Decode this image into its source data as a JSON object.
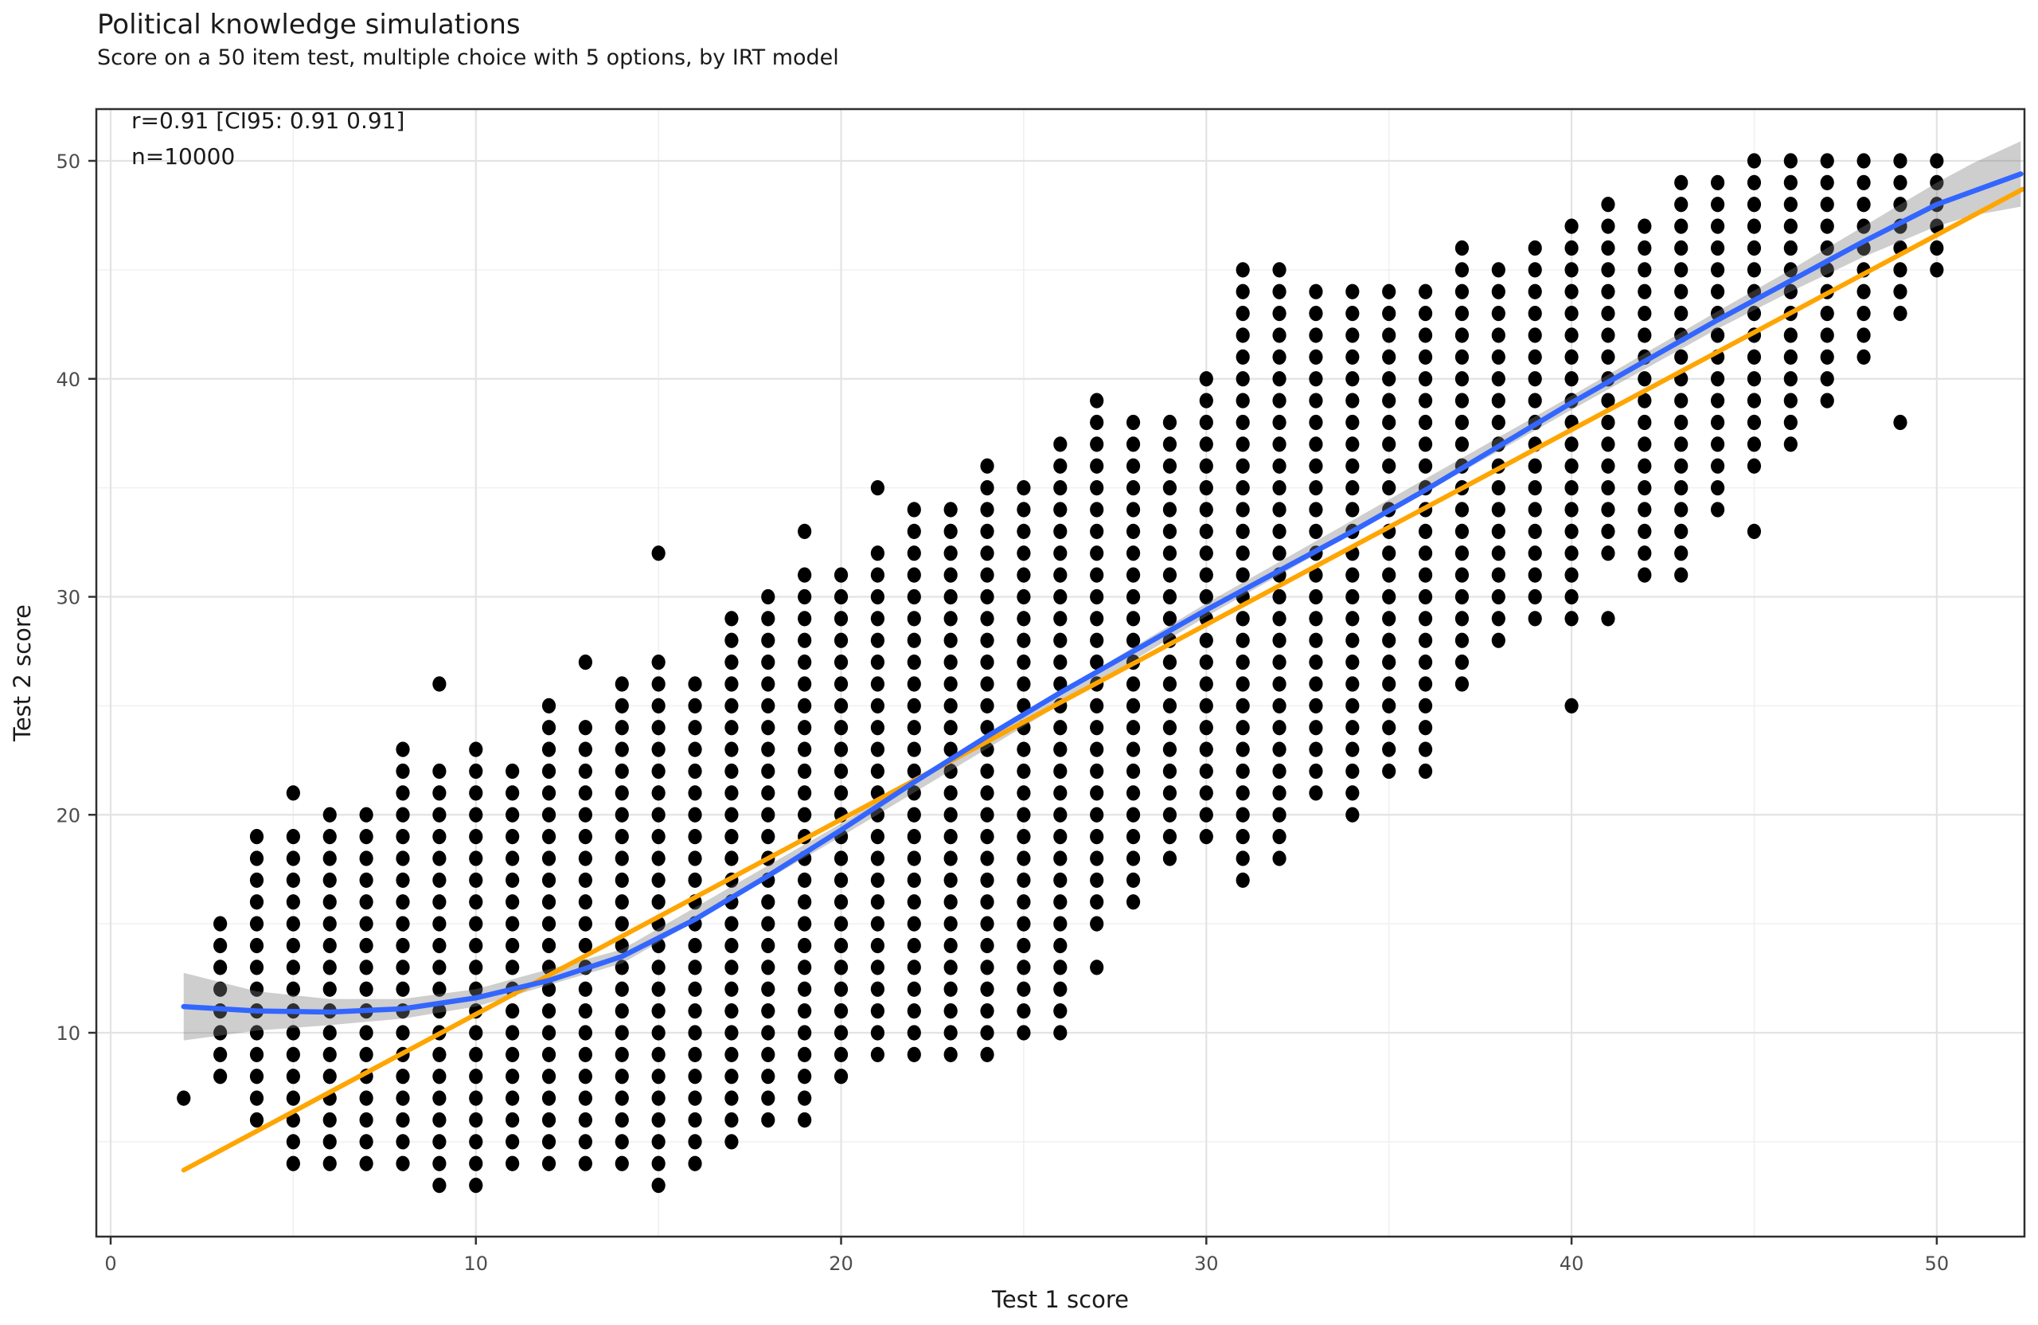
{
  "title": "Political knowledge simulations",
  "subtitle": "Score on a 50 item test, multiple choice with 5 options, by IRT model",
  "annotation": {
    "r_text": "r=0.91 [CI95: 0.91 0.91]",
    "n_text": "n=10000",
    "r": 0.91,
    "ci95": [
      0.91,
      0.91
    ],
    "n": 10000
  },
  "chart_data": {
    "type": "scatter",
    "title": "Political knowledge simulations",
    "subtitle": "Score on a 50 item test, multiple choice with 5 options, by IRT model",
    "xlabel": "Test 1 score",
    "ylabel": "Test 2 score",
    "xlim": [
      -0.4,
      52.4
    ],
    "ylim": [
      0.65,
      52.35
    ],
    "x_ticks": [
      0,
      10,
      20,
      30,
      40,
      50
    ],
    "y_ticks": [
      10,
      20,
      30,
      40,
      50
    ],
    "x_minor": [
      5,
      15,
      25,
      35,
      45
    ],
    "y_minor": [
      5,
      15,
      25,
      35,
      45
    ],
    "grid": "major+minor",
    "legend": "none",
    "points_style": {
      "color": "#000000",
      "shape": "circle"
    },
    "binned_columns": [
      {
        "x": 3,
        "y_min": 8,
        "y_max": 15
      },
      {
        "x": 4,
        "y_min": 6,
        "y_max": 19
      },
      {
        "x": 5,
        "y_min": 4,
        "y_max": 19
      },
      {
        "x": 6,
        "y_min": 4,
        "y_max": 20
      },
      {
        "x": 7,
        "y_min": 4,
        "y_max": 20
      },
      {
        "x": 8,
        "y_min": 4,
        "y_max": 23
      },
      {
        "x": 9,
        "y_min": 3,
        "y_max": 22
      },
      {
        "x": 10,
        "y_min": 3,
        "y_max": 23
      },
      {
        "x": 11,
        "y_min": 4,
        "y_max": 22
      },
      {
        "x": 12,
        "y_min": 4,
        "y_max": 25
      },
      {
        "x": 13,
        "y_min": 4,
        "y_max": 24
      },
      {
        "x": 14,
        "y_min": 4,
        "y_max": 26
      },
      {
        "x": 15,
        "y_min": 3,
        "y_max": 27
      },
      {
        "x": 16,
        "y_min": 4,
        "y_max": 26
      },
      {
        "x": 17,
        "y_min": 5,
        "y_max": 29
      },
      {
        "x": 18,
        "y_min": 6,
        "y_max": 30
      },
      {
        "x": 19,
        "y_min": 6,
        "y_max": 31
      },
      {
        "x": 20,
        "y_min": 8,
        "y_max": 31
      },
      {
        "x": 21,
        "y_min": 9,
        "y_max": 32
      },
      {
        "x": 22,
        "y_min": 9,
        "y_max": 34
      },
      {
        "x": 23,
        "y_min": 9,
        "y_max": 34
      },
      {
        "x": 24,
        "y_min": 9,
        "y_max": 36
      },
      {
        "x": 25,
        "y_min": 10,
        "y_max": 35
      },
      {
        "x": 26,
        "y_min": 10,
        "y_max": 37
      },
      {
        "x": 27,
        "y_min": 15,
        "y_max": 39
      },
      {
        "x": 28,
        "y_min": 16,
        "y_max": 38
      },
      {
        "x": 29,
        "y_min": 18,
        "y_max": 38
      },
      {
        "x": 30,
        "y_min": 19,
        "y_max": 40
      },
      {
        "x": 31,
        "y_min": 17,
        "y_max": 45
      },
      {
        "x": 32,
        "y_min": 18,
        "y_max": 45
      },
      {
        "x": 33,
        "y_min": 21,
        "y_max": 44
      },
      {
        "x": 34,
        "y_min": 20,
        "y_max": 44
      },
      {
        "x": 35,
        "y_min": 22,
        "y_max": 44
      },
      {
        "x": 36,
        "y_min": 22,
        "y_max": 44
      },
      {
        "x": 37,
        "y_min": 26,
        "y_max": 46
      },
      {
        "x": 38,
        "y_min": 28,
        "y_max": 45
      },
      {
        "x": 39,
        "y_min": 29,
        "y_max": 46
      },
      {
        "x": 40,
        "y_min": 29,
        "y_max": 47
      },
      {
        "x": 41,
        "y_min": 32,
        "y_max": 48
      },
      {
        "x": 42,
        "y_min": 31,
        "y_max": 47
      },
      {
        "x": 43,
        "y_min": 31,
        "y_max": 49
      },
      {
        "x": 44,
        "y_min": 34,
        "y_max": 49
      },
      {
        "x": 45,
        "y_min": 36,
        "y_max": 50
      },
      {
        "x": 46,
        "y_min": 37,
        "y_max": 50
      },
      {
        "x": 47,
        "y_min": 39,
        "y_max": 50
      },
      {
        "x": 48,
        "y_min": 41,
        "y_max": 50
      },
      {
        "x": 49,
        "y_min": 43,
        "y_max": 50
      },
      {
        "x": 50,
        "y_min": 45,
        "y_max": 50
      }
    ],
    "outlier_points": [
      [
        2,
        7
      ],
      [
        5,
        21
      ],
      [
        9,
        26
      ],
      [
        13,
        27
      ],
      [
        15,
        32
      ],
      [
        19,
        33
      ],
      [
        21,
        35
      ],
      [
        27,
        13
      ],
      [
        40,
        25
      ],
      [
        41,
        29
      ],
      [
        45,
        33
      ],
      [
        49,
        38
      ]
    ],
    "regression_line": {
      "name": "linear fit",
      "color": "#FFA500",
      "x1": 2,
      "y1": 3.7,
      "x2": 52.35,
      "y2": 48.7
    },
    "loess_line": {
      "name": "loess fit",
      "color": "#3366FF",
      "points": [
        [
          2,
          11.2
        ],
        [
          4,
          11.0
        ],
        [
          6,
          10.95
        ],
        [
          8,
          11.1
        ],
        [
          10,
          11.6
        ],
        [
          12,
          12.4
        ],
        [
          14,
          13.5
        ],
        [
          16,
          15.2
        ],
        [
          18,
          17.2
        ],
        [
          20,
          19.3
        ],
        [
          22,
          21.5
        ],
        [
          24,
          23.6
        ],
        [
          26,
          25.6
        ],
        [
          28,
          27.5
        ],
        [
          30,
          29.4
        ],
        [
          32,
          31.2
        ],
        [
          34,
          33.0
        ],
        [
          36,
          34.9
        ],
        [
          38,
          36.9
        ],
        [
          40,
          38.9
        ],
        [
          42,
          40.8
        ],
        [
          44,
          42.7
        ],
        [
          46,
          44.5
        ],
        [
          48,
          46.3
        ],
        [
          50,
          48.0
        ],
        [
          52.3,
          49.4
        ]
      ]
    },
    "ci_band": {
      "color": "#7f7f7f",
      "opacity": 0.38,
      "upper": [
        [
          2,
          12.75
        ],
        [
          4,
          11.9
        ],
        [
          6,
          11.55
        ],
        [
          8,
          11.55
        ],
        [
          10,
          12.0
        ],
        [
          14,
          13.82
        ],
        [
          20,
          19.6
        ],
        [
          30,
          29.7
        ],
        [
          40,
          39.22
        ],
        [
          44,
          43.1
        ],
        [
          46,
          45.0
        ],
        [
          48,
          47.0
        ],
        [
          50,
          49.0
        ],
        [
          51,
          49.9
        ],
        [
          52.3,
          50.9
        ]
      ],
      "lower": [
        [
          2,
          9.65
        ],
        [
          4,
          10.1
        ],
        [
          6,
          10.35
        ],
        [
          8,
          10.65
        ],
        [
          10,
          11.2
        ],
        [
          14,
          13.18
        ],
        [
          20,
          19.0
        ],
        [
          30,
          29.1
        ],
        [
          40,
          38.58
        ],
        [
          44,
          42.3
        ],
        [
          46,
          44.0
        ],
        [
          48,
          45.6
        ],
        [
          50,
          47.0
        ],
        [
          51,
          47.5
        ],
        [
          52.3,
          47.9
        ]
      ]
    },
    "colors": {
      "points": "#000000",
      "linear_fit": "#FFA500",
      "loess_fit": "#3366FF",
      "grid_major": "#e3e3e3",
      "grid_minor": "#f0f0f0",
      "panel_border": "#2f2f2f",
      "tick_label": "#4d4d4d",
      "text": "#1a1a1a"
    }
  }
}
